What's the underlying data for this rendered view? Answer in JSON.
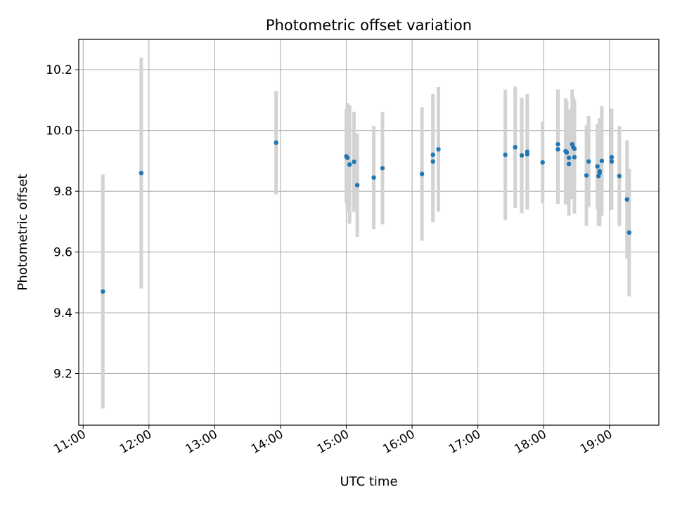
{
  "chart_data": {
    "type": "scatter",
    "title": "Photometric offset variation",
    "xlabel": "UTC time",
    "ylabel": "Photometric offset",
    "x_ticks": [
      "11:00",
      "12:00",
      "13:00",
      "14:00",
      "15:00",
      "16:00",
      "17:00",
      "18:00",
      "19:00"
    ],
    "x_tick_hours": [
      11,
      12,
      13,
      14,
      15,
      16,
      17,
      18,
      19
    ],
    "y_ticks": [
      "9.2",
      "9.4",
      "9.6",
      "9.8",
      "10.0",
      "10.2"
    ],
    "y_tick_values": [
      9.2,
      9.4,
      9.6,
      9.8,
      10.0,
      10.2
    ],
    "xlim": [
      "10:56",
      "19:45"
    ],
    "ylim": [
      9.03,
      10.3
    ],
    "grid": true,
    "colors": {
      "points": "#1f77b4",
      "errorbars": "#d3d3d3",
      "grid": "#b0b0b0"
    },
    "points": [
      {
        "x": "11:18",
        "y": 9.47,
        "err": 0.385
      },
      {
        "x": "11:53",
        "y": 9.86,
        "err": 0.38
      },
      {
        "x": "13:56",
        "y": 9.96,
        "err": 0.17
      },
      {
        "x": "15:00",
        "y": 9.915,
        "err": 0.155
      },
      {
        "x": "15:01",
        "y": 9.91,
        "err": 0.18
      },
      {
        "x": "15:03",
        "y": 9.888,
        "err": 0.195
      },
      {
        "x": "15:07",
        "y": 9.897,
        "err": 0.165
      },
      {
        "x": "15:10",
        "y": 9.82,
        "err": 0.17
      },
      {
        "x": "15:25",
        "y": 9.845,
        "err": 0.17
      },
      {
        "x": "15:33",
        "y": 9.876,
        "err": 0.185
      },
      {
        "x": "16:09",
        "y": 9.857,
        "err": 0.22
      },
      {
        "x": "16:19",
        "y": 9.92,
        "err": 0.2
      },
      {
        "x": "16:19",
        "y": 9.898,
        "err": 0.2
      },
      {
        "x": "16:24",
        "y": 9.938,
        "err": 0.205
      },
      {
        "x": "17:25",
        "y": 9.92,
        "err": 0.215
      },
      {
        "x": "17:34",
        "y": 9.945,
        "err": 0.2
      },
      {
        "x": "17:40",
        "y": 9.918,
        "err": 0.19
      },
      {
        "x": "17:45",
        "y": 9.93,
        "err": 0.19
      },
      {
        "x": "17:45",
        "y": 9.922,
        "err": 0.17
      },
      {
        "x": "17:59",
        "y": 9.895,
        "err": 0.135
      },
      {
        "x": "18:13",
        "y": 9.955,
        "err": 0.18
      },
      {
        "x": "18:13",
        "y": 9.938,
        "err": 0.18
      },
      {
        "x": "18:20",
        "y": 9.932,
        "err": 0.175
      },
      {
        "x": "18:21",
        "y": 9.928,
        "err": 0.17
      },
      {
        "x": "18:23",
        "y": 9.89,
        "err": 0.17
      },
      {
        "x": "18:23",
        "y": 9.91,
        "err": 0.16
      },
      {
        "x": "18:26",
        "y": 9.955,
        "err": 0.18
      },
      {
        "x": "18:27",
        "y": 9.945,
        "err": 0.165
      },
      {
        "x": "18:28",
        "y": 9.94,
        "err": 0.16
      },
      {
        "x": "18:28",
        "y": 9.912,
        "err": 0.185
      },
      {
        "x": "18:39",
        "y": 9.852,
        "err": 0.165
      },
      {
        "x": "18:41",
        "y": 9.898,
        "err": 0.15
      },
      {
        "x": "18:49",
        "y": 9.882,
        "err": 0.14
      },
      {
        "x": "18:50",
        "y": 9.85,
        "err": 0.165
      },
      {
        "x": "18:51",
        "y": 9.86,
        "err": 0.175
      },
      {
        "x": "18:51",
        "y": 9.866,
        "err": 0.175
      },
      {
        "x": "18:53",
        "y": 9.9,
        "err": 0.18
      },
      {
        "x": "19:02",
        "y": 9.912,
        "err": 0.16
      },
      {
        "x": "19:02",
        "y": 9.898,
        "err": 0.16
      },
      {
        "x": "19:09",
        "y": 9.85,
        "err": 0.165
      },
      {
        "x": "19:16",
        "y": 9.773,
        "err": 0.195
      },
      {
        "x": "19:18",
        "y": 9.664,
        "err": 0.21
      }
    ]
  }
}
